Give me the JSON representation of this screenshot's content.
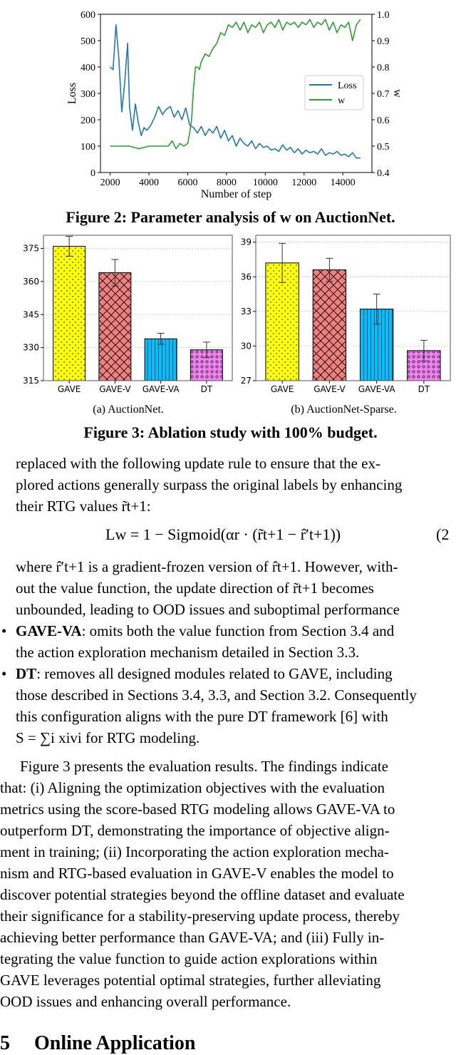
{
  "figure2": {
    "caption": "Figure 2: Parameter analysis of w on AuctionNet.",
    "chart_data": {
      "type": "line",
      "xlabel": "Number of step",
      "ylabel_left": "Loss",
      "ylabel_right": "w",
      "xlim": [
        1500,
        15500
      ],
      "ylim_left": [
        0,
        600
      ],
      "ylim_right": [
        0.4,
        1.0
      ],
      "x_ticks": [
        2000,
        4000,
        6000,
        8000,
        10000,
        12000,
        14000
      ],
      "y_left_ticks": [
        0,
        100,
        200,
        300,
        400,
        500,
        600
      ],
      "y_right_ticks": [
        0.4,
        0.5,
        0.6,
        0.7,
        0.8,
        0.9,
        1.0
      ],
      "legend_position": "center-right",
      "series": [
        {
          "name": "Loss",
          "axis": "left",
          "color": "#1f77b4",
          "x": [
            2000,
            2150,
            2300,
            2450,
            2600,
            2750,
            2900,
            3000,
            3150,
            3300,
            3450,
            3600,
            3750,
            3900,
            4100,
            4300,
            4500,
            4700,
            4900,
            5100,
            5300,
            5500,
            5700,
            5900,
            6100,
            6300,
            6500,
            6700,
            6900,
            7100,
            7300,
            7500,
            7700,
            7900,
            8100,
            8300,
            8500,
            8700,
            8900,
            9100,
            9300,
            9500,
            9700,
            9900,
            10100,
            10300,
            10500,
            10700,
            10900,
            11100,
            11300,
            11500,
            11700,
            11900,
            12100,
            12300,
            12500,
            12700,
            12900,
            13100,
            13300,
            13500,
            13700,
            13900,
            14100,
            14300,
            14500,
            14700,
            14900
          ],
          "y": [
            400,
            390,
            560,
            430,
            230,
            340,
            490,
            250,
            160,
            260,
            190,
            140,
            170,
            160,
            180,
            210,
            250,
            220,
            240,
            250,
            210,
            235,
            200,
            245,
            180,
            170,
            150,
            175,
            140,
            165,
            150,
            175,
            130,
            160,
            120,
            140,
            100,
            130,
            110,
            100,
            120,
            90,
            110,
            95,
            100,
            85,
            90,
            80,
            105,
            85,
            95,
            75,
            90,
            70,
            85,
            75,
            80,
            70,
            90,
            65,
            75,
            70,
            80,
            65,
            70,
            60,
            75,
            55,
            55
          ]
        },
        {
          "name": "w",
          "axis": "right",
          "color": "#2ca02c",
          "x": [
            2000,
            2500,
            3000,
            3500,
            4000,
            4500,
            5000,
            5200,
            5400,
            5600,
            5800,
            6000,
            6100,
            6200,
            6300,
            6400,
            6500,
            6600,
            6700,
            6900,
            7100,
            7300,
            7500,
            7700,
            7900,
            8100,
            8300,
            8500,
            8700,
            8900,
            9100,
            9300,
            9500,
            9700,
            9900,
            10100,
            10300,
            10500,
            10700,
            10900,
            11100,
            11300,
            11500,
            11700,
            11900,
            12100,
            12300,
            12500,
            12700,
            12900,
            13100,
            13300,
            13500,
            13700,
            13900,
            14100,
            14300,
            14500,
            14700,
            14900
          ],
          "y": [
            0.5,
            0.5,
            0.5,
            0.49,
            0.5,
            0.5,
            0.5,
            0.52,
            0.49,
            0.51,
            0.5,
            0.51,
            0.55,
            0.6,
            0.72,
            0.8,
            0.8,
            0.79,
            0.82,
            0.85,
            0.84,
            0.87,
            0.89,
            0.93,
            0.92,
            0.96,
            0.95,
            0.97,
            0.94,
            0.97,
            0.93,
            0.96,
            0.95,
            0.97,
            0.93,
            0.96,
            0.97,
            0.95,
            0.98,
            0.94,
            0.97,
            0.96,
            0.97,
            0.95,
            0.97,
            0.96,
            0.98,
            0.95,
            0.97,
            0.96,
            0.98,
            0.94,
            0.97,
            0.93,
            0.96,
            0.95,
            0.97,
            0.9,
            0.96,
            0.98
          ]
        }
      ]
    }
  },
  "figure3": {
    "caption": "Figure 3: Ablation study with 100% budget.",
    "chart_data": [
      {
        "type": "bar",
        "subcaption": "(a) AuctionNet.",
        "categories": [
          "GAVE",
          "GAVE-V",
          "GAVE-VA",
          "DT"
        ],
        "values": [
          376,
          364,
          334,
          329
        ],
        "errors": [
          4.5,
          6,
          2.5,
          3.5
        ],
        "ylim": [
          315,
          381
        ],
        "y_ticks": [
          315,
          330,
          345,
          360,
          375
        ],
        "colors": [
          "#ffff00",
          "#f08080",
          "#00bfff",
          "#ee82ee"
        ],
        "patterns": [
          "dots",
          "crosshatch",
          "vertical",
          "circles"
        ]
      },
      {
        "type": "bar",
        "subcaption": "(b) AuctionNet-Sparse.",
        "categories": [
          "GAVE",
          "GAVE-V",
          "GAVE-VA",
          "DT"
        ],
        "values": [
          37.2,
          36.6,
          33.2,
          29.6
        ],
        "errors": [
          1.7,
          1.0,
          1.3,
          0.9
        ],
        "ylim": [
          27,
          39.6
        ],
        "y_ticks": [
          27,
          30,
          33,
          36,
          39
        ],
        "colors": [
          "#ffff00",
          "#f08080",
          "#00bfff",
          "#ee82ee"
        ],
        "patterns": [
          "dots",
          "crosshatch",
          "vertical",
          "circles"
        ]
      }
    ]
  },
  "body": {
    "para1": [
      "replaced with the following update rule to ensure that the ex-",
      "plored actions generally surpass the original labels by enhancing",
      "their RTG values r̃t+1:"
    ],
    "equation": "Lw = 1 − Sigmoid(αr · (r̃t+1 − r̂′t+1))",
    "equation_number": "(2",
    "para2": [
      "where r̂′t+1 is a gradient-frozen version of r̂t+1. However, with-",
      "out the value function, the update direction of r̃t+1 becomes",
      "unbounded, leading to OOD issues and suboptimal performance"
    ],
    "bullet1_term": "GAVE-VA",
    "bullet1": [
      ": omits both the value function from Section 3.4 and",
      "the action exploration mechanism detailed in Section 3.3."
    ],
    "bullet2_term": "DT",
    "bullet2": [
      ": removes all designed modules related to GAVE, including",
      "those described in Sections 3.4, 3.3, and Section 3.2. Consequently",
      "this configuration aligns with the pure DT framework [6] with",
      "S = ∑i xivi for RTG modeling."
    ],
    "para3": [
      "Figure 3 presents the evaluation results. The findings indicate",
      "that: (i) Aligning the optimization objectives with the evaluation",
      "metrics using the score-based RTG modeling allows GAVE-VA to",
      "outperform DT, demonstrating the importance of objective align-",
      "ment in training; (ii) Incorporating the action exploration mecha-",
      "nism and RTG-based evaluation in GAVE-V enables the model to",
      "discover potential strategies beyond the offline dataset and evaluate",
      "their significance for a stability-preserving update process, thereby",
      "achieving better performance than GAVE-VA; and (iii) Fully in-",
      "tegrating the value function to guide action explorations within",
      "GAVE leverages potential optimal strategies, further alleviating",
      "OOD issues and enhancing overall performance."
    ],
    "section_number": "5",
    "section_title": "Online Application"
  }
}
